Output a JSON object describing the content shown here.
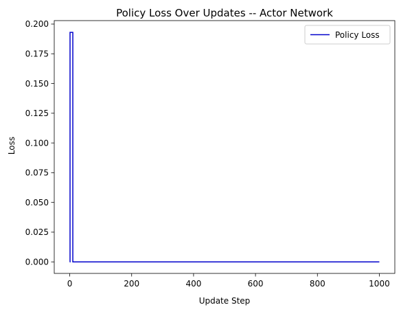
{
  "chart_data": {
    "type": "line",
    "title": "Policy Loss Over Updates -- Actor Network",
    "xlabel": "Update Step",
    "ylabel": "Loss",
    "xlim": [
      -50,
      1050
    ],
    "ylim": [
      -0.0097,
      0.2029
    ],
    "xticks": [
      0,
      200,
      400,
      600,
      800,
      1000
    ],
    "xtick_labels": [
      "0",
      "200",
      "400",
      "600",
      "800",
      "1000"
    ],
    "yticks": [
      0.0,
      0.025,
      0.05,
      0.075,
      0.1,
      0.125,
      0.15,
      0.175,
      0.2
    ],
    "ytick_labels": [
      "0.000",
      "0.025",
      "0.050",
      "0.075",
      "0.100",
      "0.125",
      "0.150",
      "0.175",
      "0.200"
    ],
    "grid": false,
    "legend_position": "top-right",
    "series": [
      {
        "name": "Policy Loss",
        "color": "#0000cc",
        "step": true,
        "x": [
          0,
          1,
          2,
          3,
          4,
          5,
          6,
          7,
          8,
          9,
          10,
          12,
          20,
          50,
          100,
          200,
          300,
          400,
          500,
          600,
          700,
          800,
          900,
          1000
        ],
        "y": [
          0.0,
          0.193,
          0.193,
          0.193,
          0.193,
          0.193,
          0.193,
          0.193,
          0.193,
          0.193,
          0.0,
          0.0,
          0.0,
          0.0,
          0.0,
          0.0,
          0.0,
          0.0,
          0.0,
          0.0,
          0.0,
          0.0,
          0.0,
          0.0
        ]
      }
    ]
  }
}
